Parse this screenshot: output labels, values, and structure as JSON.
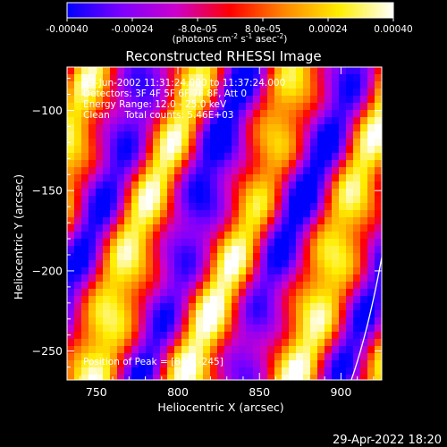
{
  "colorbar": {
    "colormap": "rhessi-blue-purple-red-yellow-white",
    "stops": [
      "#0000ff",
      "#7d00ff",
      "#cc00cc",
      "#ff0000",
      "#ff8800",
      "#ffee00",
      "#ffffff"
    ],
    "range": [
      -0.0004,
      0.0004
    ],
    "tick_labels": [
      "-0.00040",
      "-0.00024",
      "-8.0e-05",
      "8.0e-05",
      "0.00024",
      "0.00040"
    ],
    "units_prefix": "(photons cm",
    "units_exp1": "-2",
    "units_mid": " s",
    "units_exp2": "-1",
    "units_mid2": " asec",
    "units_exp3": "-2",
    "units_suffix": ")"
  },
  "plot": {
    "title": "Reconstructed RHESSI Image",
    "xlabel": "Heliocentric X (arcsec)",
    "ylabel": "Heliocentric Y (arcsec)",
    "xlim": [
      732,
      925
    ],
    "ylim": [
      -268,
      -73
    ],
    "x_ticks": [
      {
        "value": 750,
        "label": "750"
      },
      {
        "value": 800,
        "label": "800"
      },
      {
        "value": 850,
        "label": "850"
      },
      {
        "value": 900,
        "label": "900"
      }
    ],
    "y_ticks": [
      {
        "value": -100,
        "label": "−100"
      },
      {
        "value": -150,
        "label": "−150"
      },
      {
        "value": -200,
        "label": "−200"
      },
      {
        "value": -250,
        "label": "−250"
      }
    ],
    "annotations": [
      "29-Jun-2002 11:31:24.000 to 11:37:24.000",
      "Detectors: 3F 4F 5F 6F 7F 8F, Att 0",
      "Energy Range: 12.0 - 25.0 keV",
      "Clean     Total counts: 5.46E+03"
    ],
    "peak_label": "Position of Peak = [880, -245]",
    "limb": "solar limb arc, lower right"
  },
  "footer": {
    "timestamp": "29-Apr-2022 18:20"
  }
}
